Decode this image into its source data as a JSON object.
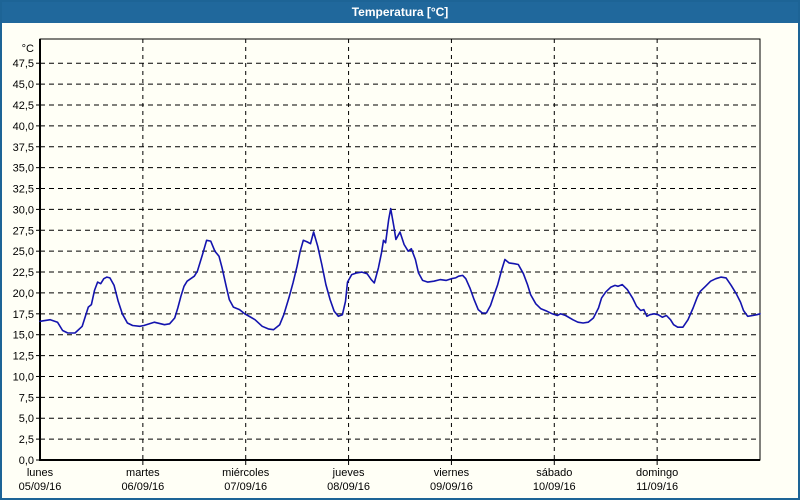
{
  "window": {
    "title": "Temperatura [°C]"
  },
  "colors": {
    "titlebar_bg": "#20689c",
    "frame_border": "#1d6496",
    "content_bg": "#fffff6",
    "title_text": "#ffffff",
    "axis": "#000000",
    "grid": "#000000",
    "tick_text": "#000000",
    "line": "#1414ae"
  },
  "chart_data": {
    "type": "line",
    "title": "Temperatura [°C]",
    "legend": "none",
    "grid": "dashed horizontal at every 2.5°C, dashed vertical at each day boundary",
    "y_axis": {
      "unit_label": "°C",
      "min": 0,
      "max": 50,
      "step": 2.5,
      "tick_labels": [
        "47,5",
        "45,0",
        "42,5",
        "40,0",
        "37,5",
        "35,0",
        "32,5",
        "30,0",
        "27,5",
        "25,0",
        "22,5",
        "20,0",
        "17,5",
        "15,0",
        "12,5",
        "10,0",
        "7,5",
        "5,0",
        "2,5",
        "0,0"
      ],
      "tick_values": [
        47.5,
        45.0,
        42.5,
        40.0,
        37.5,
        35.0,
        32.5,
        30.0,
        27.5,
        25.0,
        22.5,
        20.0,
        17.5,
        15.0,
        12.5,
        10.0,
        7.5,
        5.0,
        2.5,
        0.0
      ]
    },
    "x_axis": {
      "categories": [
        {
          "day": "lunes",
          "date": "05/09/16"
        },
        {
          "day": "martes",
          "date": "06/09/16"
        },
        {
          "day": "miércoles",
          "date": "07/09/16"
        },
        {
          "day": "jueves",
          "date": "08/09/16"
        },
        {
          "day": "viernes",
          "date": "09/09/16"
        },
        {
          "day": "sábado",
          "date": "10/09/16"
        },
        {
          "day": "domingo",
          "date": "11/09/16"
        }
      ],
      "days_shown": 7
    },
    "series": [
      {
        "name": "Temperatura",
        "color": "#1414ae",
        "x_unit": "days from start (lunes 05/09/16 00:00)",
        "y_unit": "°C",
        "points": [
          [
            0.0,
            16.6
          ],
          [
            0.1,
            16.8
          ],
          [
            0.17,
            16.5
          ],
          [
            0.22,
            15.5
          ],
          [
            0.27,
            15.2
          ],
          [
            0.34,
            15.2
          ],
          [
            0.41,
            16.0
          ],
          [
            0.47,
            18.3
          ],
          [
            0.5,
            18.6
          ],
          [
            0.53,
            20.3
          ],
          [
            0.56,
            21.3
          ],
          [
            0.59,
            21.1
          ],
          [
            0.62,
            21.7
          ],
          [
            0.65,
            21.9
          ],
          [
            0.68,
            21.8
          ],
          [
            0.72,
            20.9
          ],
          [
            0.76,
            19.0
          ],
          [
            0.8,
            17.5
          ],
          [
            0.85,
            16.4
          ],
          [
            0.9,
            16.1
          ],
          [
            0.97,
            16.0
          ],
          [
            1.01,
            16.1
          ],
          [
            1.11,
            16.5
          ],
          [
            1.21,
            16.2
          ],
          [
            1.26,
            16.3
          ],
          [
            1.31,
            17.0
          ],
          [
            1.34,
            18.2
          ],
          [
            1.37,
            19.6
          ],
          [
            1.4,
            20.8
          ],
          [
            1.43,
            21.4
          ],
          [
            1.5,
            22.0
          ],
          [
            1.53,
            22.6
          ],
          [
            1.58,
            24.6
          ],
          [
            1.62,
            26.3
          ],
          [
            1.66,
            26.2
          ],
          [
            1.7,
            25.0
          ],
          [
            1.74,
            24.4
          ],
          [
            1.77,
            23.0
          ],
          [
            1.81,
            20.8
          ],
          [
            1.84,
            19.2
          ],
          [
            1.88,
            18.3
          ],
          [
            1.94,
            18.0
          ],
          [
            1.99,
            17.5
          ],
          [
            2.02,
            17.3
          ],
          [
            2.09,
            16.8
          ],
          [
            2.16,
            16.0
          ],
          [
            2.22,
            15.7
          ],
          [
            2.27,
            15.6
          ],
          [
            2.33,
            16.2
          ],
          [
            2.37,
            17.4
          ],
          [
            2.42,
            19.4
          ],
          [
            2.46,
            21.2
          ],
          [
            2.5,
            23.2
          ],
          [
            2.53,
            25.0
          ],
          [
            2.56,
            26.3
          ],
          [
            2.6,
            26.1
          ],
          [
            2.63,
            25.9
          ],
          [
            2.66,
            27.3
          ],
          [
            2.7,
            25.6
          ],
          [
            2.74,
            23.4
          ],
          [
            2.78,
            21.0
          ],
          [
            2.82,
            19.2
          ],
          [
            2.86,
            17.8
          ],
          [
            2.9,
            17.2
          ],
          [
            2.94,
            17.4
          ],
          [
            2.97,
            19.0
          ],
          [
            2.99,
            21.3
          ],
          [
            3.03,
            22.2
          ],
          [
            3.08,
            22.4
          ],
          [
            3.13,
            22.5
          ],
          [
            3.18,
            22.3
          ],
          [
            3.22,
            21.6
          ],
          [
            3.25,
            21.2
          ],
          [
            3.29,
            23.0
          ],
          [
            3.32,
            24.8
          ],
          [
            3.34,
            26.3
          ],
          [
            3.36,
            26.0
          ],
          [
            3.39,
            28.8
          ],
          [
            3.41,
            30.1
          ],
          [
            3.44,
            28.0
          ],
          [
            3.46,
            26.4
          ],
          [
            3.5,
            27.3
          ],
          [
            3.54,
            25.8
          ],
          [
            3.58,
            25.0
          ],
          [
            3.61,
            25.3
          ],
          [
            3.65,
            24.0
          ],
          [
            3.68,
            22.4
          ],
          [
            3.72,
            21.5
          ],
          [
            3.77,
            21.3
          ],
          [
            3.83,
            21.4
          ],
          [
            3.89,
            21.6
          ],
          [
            3.95,
            21.5
          ],
          [
            4.0,
            21.7
          ],
          [
            4.04,
            21.8
          ],
          [
            4.07,
            22.0
          ],
          [
            4.11,
            22.1
          ],
          [
            4.14,
            21.7
          ],
          [
            4.18,
            20.6
          ],
          [
            4.22,
            19.2
          ],
          [
            4.26,
            18.0
          ],
          [
            4.3,
            17.6
          ],
          [
            4.34,
            17.6
          ],
          [
            4.38,
            18.5
          ],
          [
            4.41,
            19.6
          ],
          [
            4.45,
            21.0
          ],
          [
            4.49,
            22.8
          ],
          [
            4.52,
            24.0
          ],
          [
            4.56,
            23.6
          ],
          [
            4.61,
            23.5
          ],
          [
            4.65,
            23.4
          ],
          [
            4.7,
            22.3
          ],
          [
            4.74,
            21.0
          ],
          [
            4.77,
            19.8
          ],
          [
            4.82,
            18.7
          ],
          [
            4.87,
            18.1
          ],
          [
            4.93,
            17.8
          ],
          [
            4.98,
            17.5
          ],
          [
            5.03,
            17.3
          ],
          [
            5.06,
            17.5
          ],
          [
            5.11,
            17.3
          ],
          [
            5.18,
            16.8
          ],
          [
            5.23,
            16.5
          ],
          [
            5.28,
            16.4
          ],
          [
            5.33,
            16.5
          ],
          [
            5.38,
            17.0
          ],
          [
            5.43,
            18.2
          ],
          [
            5.46,
            19.4
          ],
          [
            5.5,
            20.1
          ],
          [
            5.55,
            20.7
          ],
          [
            5.59,
            20.9
          ],
          [
            5.62,
            20.8
          ],
          [
            5.66,
            21.0
          ],
          [
            5.71,
            20.4
          ],
          [
            5.76,
            19.4
          ],
          [
            5.8,
            18.4
          ],
          [
            5.84,
            17.9
          ],
          [
            5.87,
            18.0
          ],
          [
            5.9,
            17.2
          ],
          [
            5.93,
            17.4
          ],
          [
            5.97,
            17.5
          ],
          [
            6.01,
            17.4
          ],
          [
            6.05,
            17.1
          ],
          [
            6.09,
            17.3
          ],
          [
            6.13,
            16.8
          ],
          [
            6.16,
            16.2
          ],
          [
            6.2,
            15.9
          ],
          [
            6.25,
            15.9
          ],
          [
            6.3,
            16.8
          ],
          [
            6.35,
            18.2
          ],
          [
            6.39,
            19.5
          ],
          [
            6.42,
            20.2
          ],
          [
            6.47,
            20.8
          ],
          [
            6.52,
            21.4
          ],
          [
            6.57,
            21.7
          ],
          [
            6.62,
            21.9
          ],
          [
            6.67,
            21.8
          ],
          [
            6.72,
            20.9
          ],
          [
            6.77,
            19.9
          ],
          [
            6.81,
            18.9
          ],
          [
            6.84,
            17.9
          ],
          [
            6.88,
            17.2
          ],
          [
            6.93,
            17.3
          ],
          [
            6.97,
            17.4
          ],
          [
            7.0,
            17.5
          ]
        ]
      }
    ]
  }
}
